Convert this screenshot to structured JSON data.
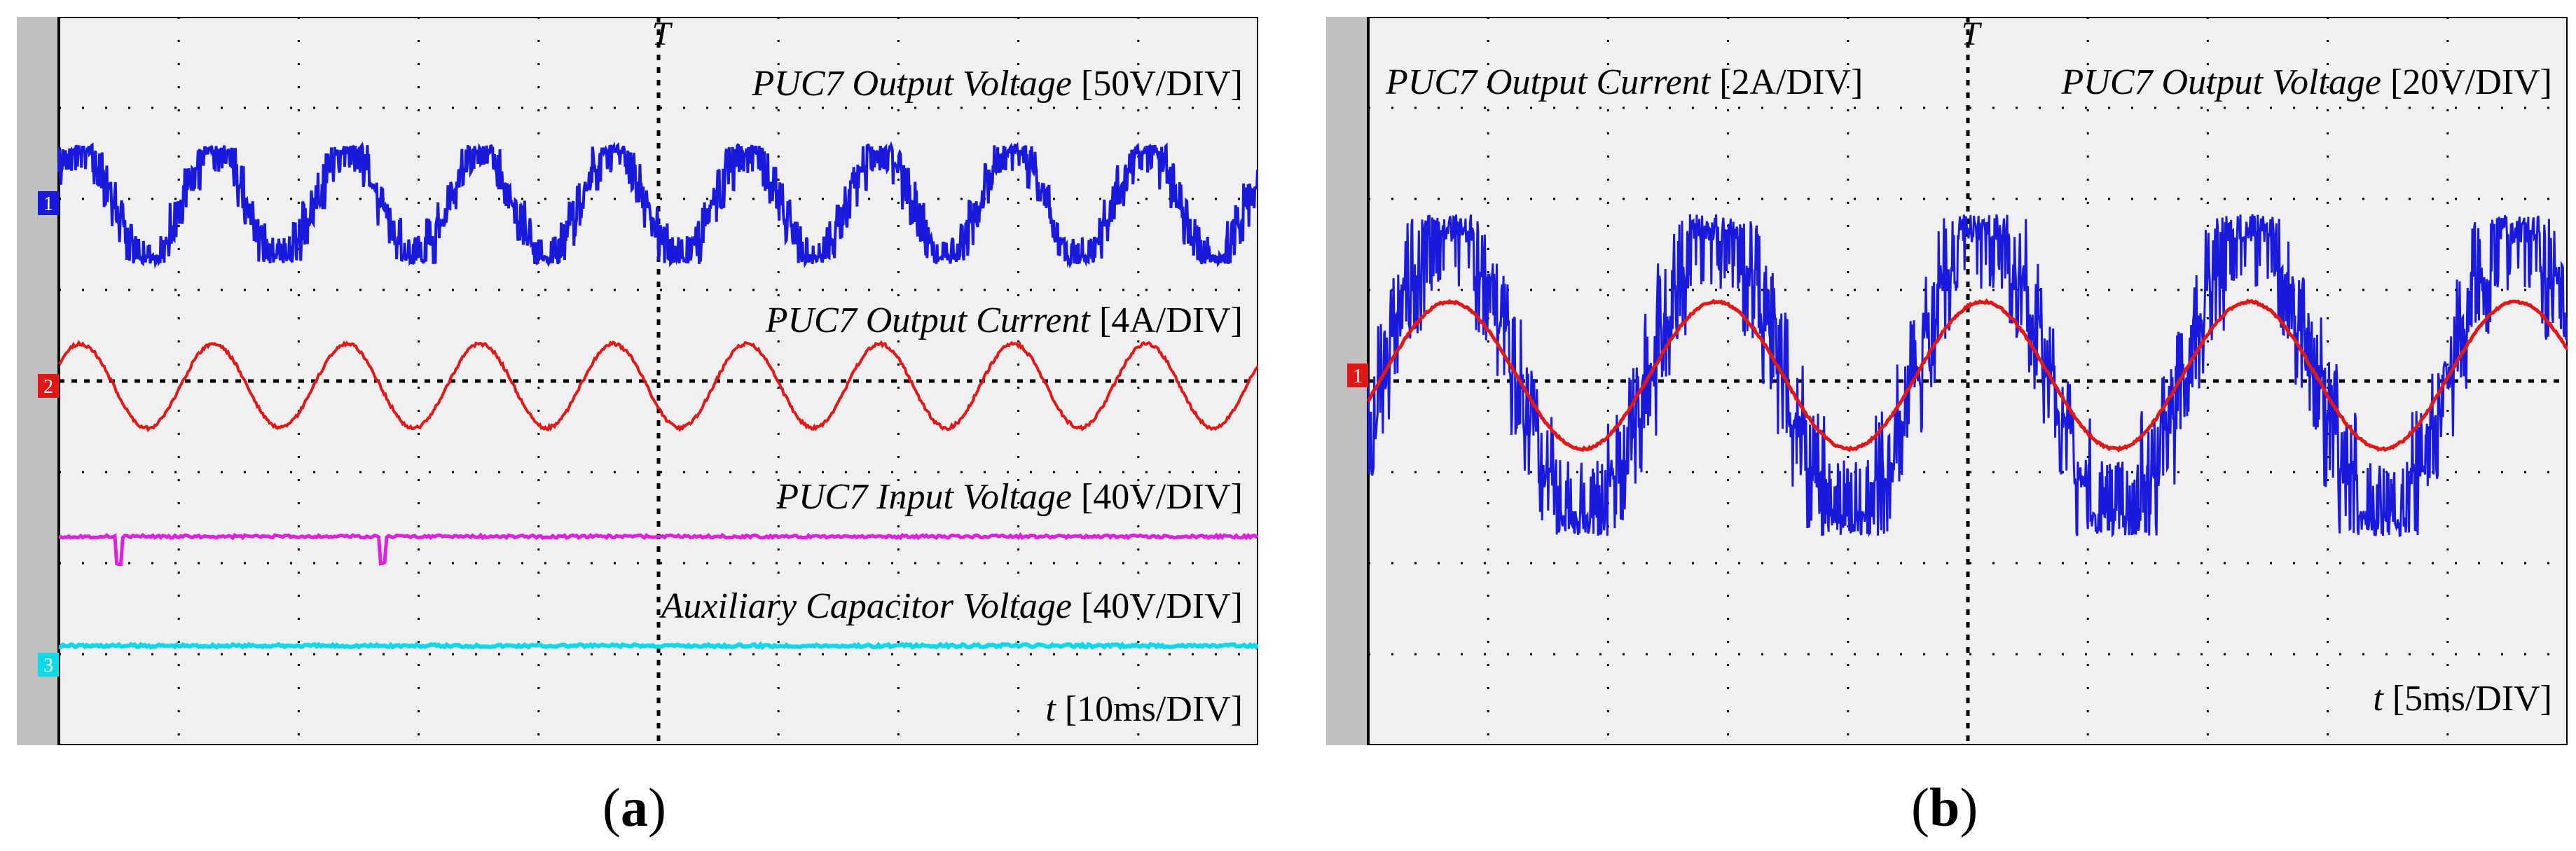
{
  "chart_data": [
    {
      "type": "line",
      "panel_label": "a",
      "grid": true,
      "divisions": {
        "x": 10,
        "y": 8
      },
      "trigger_marker": "T",
      "channel_markers": [
        "1",
        "2",
        "3"
      ],
      "series": [
        {
          "name": "PUC7 Output Voltage",
          "scale_label": "[50V/DIV]",
          "color": "#1a1adc",
          "waveform": "seven-level-staircase",
          "cycles": 9,
          "channel": "1"
        },
        {
          "name": "PUC7 Output Current",
          "scale_label": "[4A/DIV]",
          "color": "#e01818",
          "waveform": "sine",
          "cycles": 9,
          "channel": "2"
        },
        {
          "name": "PUC7 Input Voltage",
          "scale_label": "[40V/DIV]",
          "color": "#e020e0",
          "waveform": "dc"
        },
        {
          "name": "Auxiliary Capacitor Voltage",
          "scale_label": "[40V/DIV]",
          "color": "#10d8e8",
          "waveform": "dc",
          "channel": "3"
        }
      ],
      "time_label": {
        "symbol": "t",
        "scale": "[10ms/DIV]"
      }
    },
    {
      "type": "line",
      "panel_label": "b",
      "grid": true,
      "divisions": {
        "x": 10,
        "y": 8
      },
      "trigger_marker": "T",
      "channel_markers": [
        "1"
      ],
      "series": [
        {
          "name": "PUC7 Output Current",
          "scale_label": "[2A/DIV]",
          "color": "#e01818",
          "waveform": "sine",
          "cycles": 4.5
        },
        {
          "name": "PUC7 Output Voltage",
          "scale_label": "[20V/DIV]",
          "color": "#1a1adc",
          "waveform": "seven-level-staircase",
          "cycles": 4.5
        }
      ],
      "time_label": {
        "symbol": "t",
        "scale": "[5ms/DIV]"
      }
    }
  ]
}
